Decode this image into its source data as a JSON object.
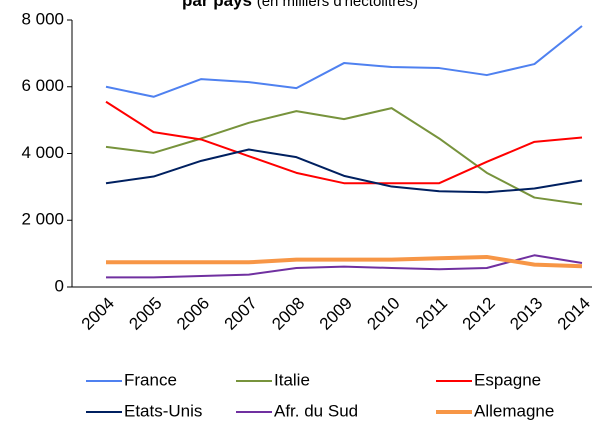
{
  "chart_data": {
    "type": "line",
    "title": "par pays",
    "subtitle": "(en milliers d'hectolitres)",
    "categories": [
      "2004",
      "2005",
      "2006",
      "2007",
      "2008",
      "2009",
      "2010",
      "2011",
      "2012",
      "2013",
      "2014"
    ],
    "series": [
      {
        "name": "France",
        "color": "#4f81f0",
        "values": [
          6000,
          5700,
          6230,
          6140,
          5960,
          6710,
          6590,
          6560,
          6350,
          6680,
          7820
        ]
      },
      {
        "name": "Italie",
        "color": "#77933c",
        "values": [
          4200,
          4020,
          4450,
          4920,
          5270,
          5030,
          5360,
          4450,
          3420,
          2680,
          2480
        ]
      },
      {
        "name": "Espagne",
        "color": "#ff0000",
        "values": [
          5550,
          4640,
          4420,
          3920,
          3420,
          3110,
          3110,
          3110,
          3750,
          4350,
          4480
        ]
      },
      {
        "name": "Etats-Unis",
        "color": "#002060",
        "values": [
          3110,
          3310,
          3780,
          4120,
          3890,
          3330,
          3010,
          2870,
          2840,
          2950,
          3190
        ]
      },
      {
        "name": "Afr. du Sud",
        "color": "#7030a0",
        "values": [
          290,
          290,
          330,
          370,
          570,
          610,
          570,
          530,
          570,
          950,
          720
        ]
      },
      {
        "name": "Allemagne",
        "color": "#f79646",
        "values": [
          740,
          740,
          740,
          740,
          820,
          820,
          820,
          860,
          900,
          670,
          620
        ]
      }
    ],
    "ylim": [
      0,
      8000
    ],
    "yticks": [
      0,
      {
        "value": 2000,
        "label": "2 000"
      },
      {
        "value": 4000,
        "label": "4 000"
      },
      {
        "value": 6000,
        "label": "6 000"
      },
      {
        "value": 8000,
        "label": "8 000"
      }
    ],
    "grid": false,
    "legend": "bottom"
  }
}
